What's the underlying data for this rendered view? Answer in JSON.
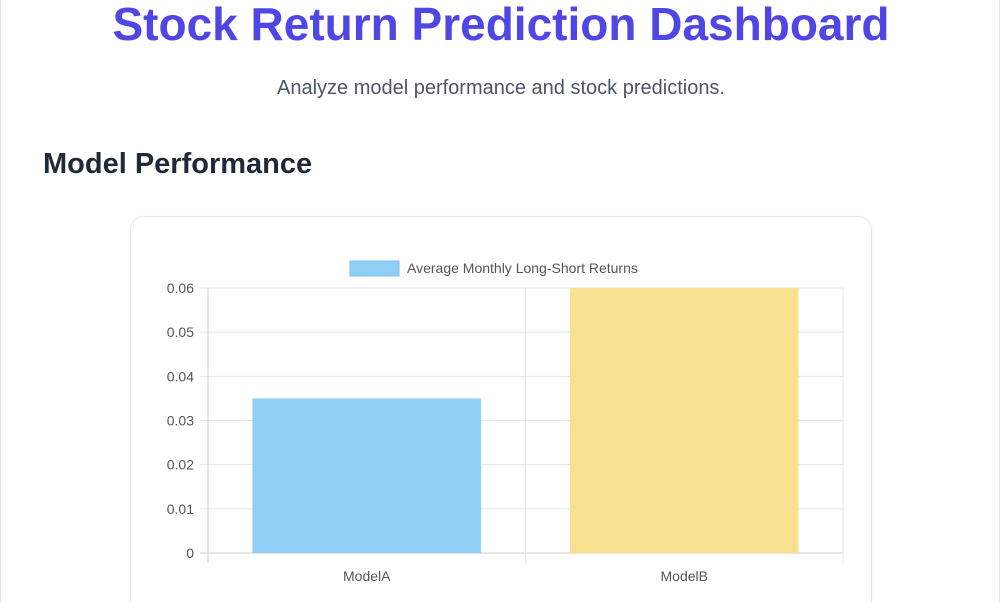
{
  "header": {
    "title": "Stock Return Prediction Dashboard",
    "subtitle": "Analyze model performance and stock predictions."
  },
  "section": {
    "heading": "Model Performance"
  },
  "colors": {
    "title": "#4f46e5",
    "bar_model_a": "#90cff5",
    "bar_model_b": "#f7e08f",
    "legend_swatch": "#90cff5"
  },
  "chart_data": {
    "type": "bar",
    "categories": [
      "ModelA",
      "ModelB"
    ],
    "series": [
      {
        "name": "Average Monthly Long-Short Returns",
        "values": [
          0.035,
          0.06
        ]
      }
    ],
    "y_ticks": [
      "0",
      "0.01",
      "0.02",
      "0.03",
      "0.04",
      "0.05",
      "0.06"
    ],
    "ylim": [
      0,
      0.06
    ],
    "grid": true,
    "legend_position": "top-center"
  }
}
